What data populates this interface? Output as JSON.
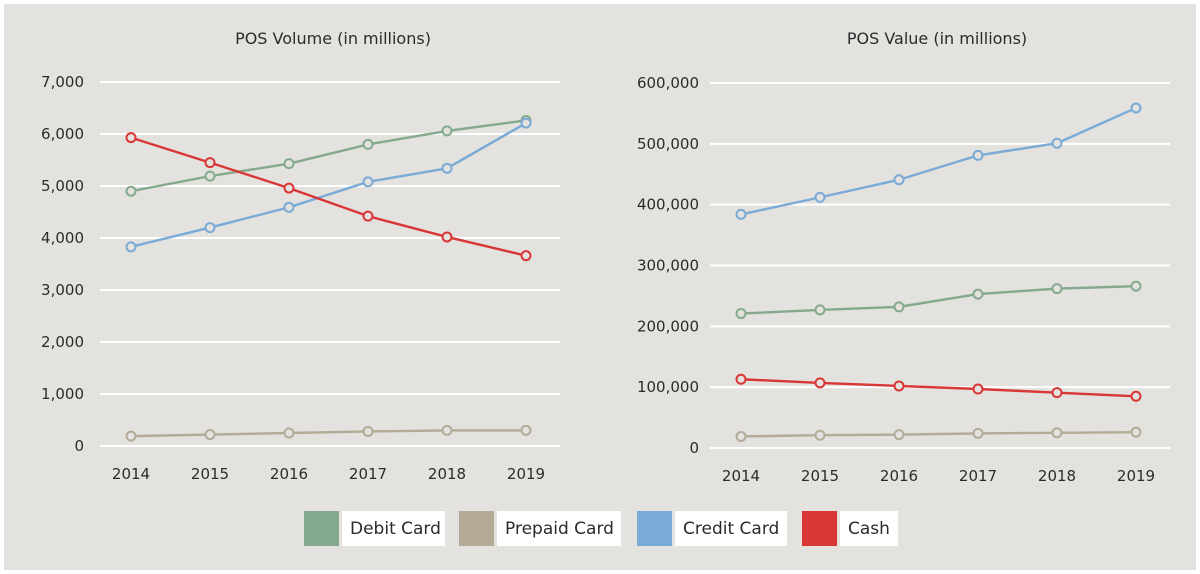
{
  "chart_data": [
    {
      "type": "line",
      "title": "POS Volume (in millions)",
      "xlabel": "",
      "ylabel": "",
      "categories": [
        "2014",
        "2015",
        "2016",
        "2017",
        "2018",
        "2019"
      ],
      "ylim": [
        0,
        7000
      ],
      "yticks": [
        0,
        1000,
        2000,
        3000,
        4000,
        5000,
        6000,
        7000
      ],
      "ytick_labels": [
        "0",
        "1,000",
        "2,000",
        "3,000",
        "4,000",
        "5,000",
        "6,000",
        "7,000"
      ],
      "grid": true,
      "series": [
        {
          "name": "Debit Card",
          "color": "#84a98d",
          "values": [
            4900,
            5190,
            5430,
            5800,
            6060,
            6260
          ]
        },
        {
          "name": "Prepaid Card",
          "color": "#b3ab98",
          "values": [
            190,
            220,
            250,
            280,
            300,
            300
          ]
        },
        {
          "name": "Credit Card",
          "color": "#7aaad6",
          "values": [
            3830,
            4200,
            4590,
            5080,
            5340,
            6210
          ]
        },
        {
          "name": "Cash",
          "color": "#d93636",
          "values": [
            5930,
            5450,
            4960,
            4420,
            4020,
            3660
          ]
        }
      ]
    },
    {
      "type": "line",
      "title": "POS Value (in millions)",
      "xlabel": "",
      "ylabel": "",
      "categories": [
        "2014",
        "2015",
        "2016",
        "2017",
        "2018",
        "2019"
      ],
      "ylim": [
        0,
        600000
      ],
      "yticks": [
        0,
        100000,
        200000,
        300000,
        400000,
        500000,
        600000
      ],
      "ytick_labels": [
        "0",
        "100,000",
        "200,000",
        "300,000",
        "400,000",
        "500,000",
        "600,000"
      ],
      "grid": true,
      "series": [
        {
          "name": "Debit Card",
          "color": "#84a98d",
          "values": [
            221000,
            227000,
            232000,
            253000,
            262000,
            266000
          ]
        },
        {
          "name": "Prepaid Card",
          "color": "#b3ab98",
          "values": [
            19000,
            21000,
            22000,
            24000,
            25000,
            26000
          ]
        },
        {
          "name": "Credit Card",
          "color": "#7aaad6",
          "values": [
            384000,
            412000,
            441000,
            481000,
            501000,
            559000
          ]
        },
        {
          "name": "Cash",
          "color": "#d93636",
          "values": [
            113000,
            107000,
            102000,
            97000,
            91000,
            85000
          ]
        }
      ]
    }
  ],
  "legend": {
    "placement": "bottom-center",
    "items": [
      {
        "label": "Debit Card",
        "color": "#84a98d"
      },
      {
        "label": "Prepaid Card",
        "color": "#b3ab98"
      },
      {
        "label": "Credit Card",
        "color": "#7aaad6"
      },
      {
        "label": "Cash",
        "color": "#d93636"
      }
    ]
  }
}
